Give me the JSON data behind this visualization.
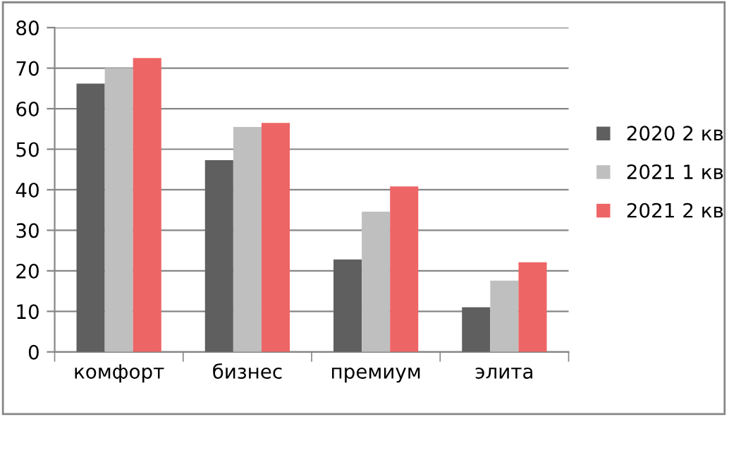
{
  "chart_data": {
    "type": "bar",
    "categories": [
      "комфорт",
      "бизнес",
      "премиум",
      "элита"
    ],
    "series": [
      {
        "name": "2020 2 кв",
        "color": "#5f5f5f",
        "values": [
          66.2,
          47.3,
          22.8,
          11
        ]
      },
      {
        "name": "2021 1 кв",
        "color": "#bfbfbf",
        "values": [
          70,
          55.5,
          34.6,
          17.6
        ]
      },
      {
        "name": "2021 2 кв",
        "color": "#ee6566",
        "values": [
          72.5,
          56.5,
          40.8,
          22.1
        ]
      }
    ],
    "ylim": [
      0,
      80
    ],
    "yticks": [
      0,
      10,
      20,
      30,
      40,
      50,
      60,
      70,
      80
    ],
    "grid": "y",
    "legend": "right"
  }
}
